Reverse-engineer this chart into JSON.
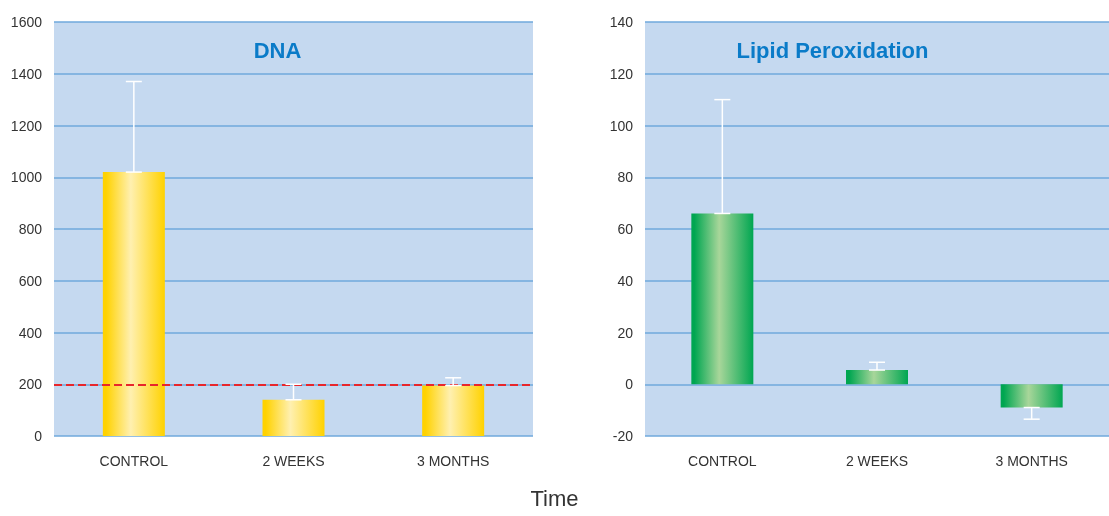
{
  "chart_data": [
    {
      "type": "bar",
      "title": "DNA",
      "xlabel": "Time",
      "categories": [
        "CONTROL",
        "2 WEEKS",
        "3 MONTHS"
      ],
      "series": [
        {
          "color": "#ffd200",
          "values": [
            1020,
            140,
            195
          ],
          "errors": [
            [
              1020,
              1370
            ],
            [
              140,
              200
            ],
            [
              195,
              225
            ]
          ]
        }
      ],
      "ylim": [
        0,
        1600
      ],
      "yticks": [
        0,
        200,
        400,
        600,
        800,
        1000,
        1200,
        1400,
        1600
      ],
      "grid": "y",
      "ref_lines": [
        {
          "axis": "y",
          "value": 200,
          "color": "#e8262b",
          "line_style": "dashed"
        }
      ]
    },
    {
      "type": "bar",
      "title": "Lipid Peroxidation",
      "categories": [
        "CONTROL",
        "2 WEEKS",
        "3 MONTHS"
      ],
      "series": [
        {
          "color": "#00a651",
          "values": [
            66,
            5.5,
            -9
          ],
          "errors": [
            [
              66,
              110
            ],
            [
              5.5,
              8.5
            ],
            [
              -13.5,
              -9
            ]
          ]
        }
      ],
      "ylim": [
        -20,
        140
      ],
      "yticks": [
        -20,
        0,
        20,
        40,
        60,
        80,
        100,
        120,
        140
      ],
      "grid": "y"
    }
  ]
}
